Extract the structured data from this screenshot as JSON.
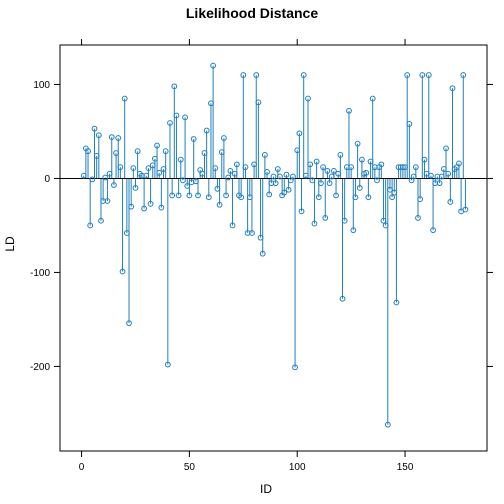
{
  "chart_data": {
    "type": "scatter",
    "title": "Likelihood Distance",
    "xlabel": "ID",
    "ylabel": "LD",
    "xlim": [
      -10,
      188
    ],
    "ylim": [
      -290,
      142
    ],
    "xticks": [
      0,
      50,
      100,
      150
    ],
    "yticks": [
      -200,
      -100,
      0,
      100
    ],
    "reference_line": 0,
    "style": "stem",
    "color": "#1f7fbf",
    "grid": false,
    "points": [
      [
        1,
        3
      ],
      [
        2,
        32
      ],
      [
        3,
        29
      ],
      [
        4,
        -50
      ],
      [
        5,
        -1
      ],
      [
        6,
        53
      ],
      [
        7,
        24
      ],
      [
        8,
        46
      ],
      [
        9,
        -45
      ],
      [
        10,
        -24
      ],
      [
        11,
        1
      ],
      [
        12,
        -24
      ],
      [
        13,
        5
      ],
      [
        14,
        44
      ],
      [
        15,
        -7
      ],
      [
        16,
        27
      ],
      [
        17,
        43
      ],
      [
        18,
        12
      ],
      [
        19,
        -99
      ],
      [
        20,
        85
      ],
      [
        21,
        -58
      ],
      [
        22,
        -154
      ],
      [
        23,
        -30
      ],
      [
        24,
        11
      ],
      [
        25,
        -10
      ],
      [
        26,
        29
      ],
      [
        27,
        5
      ],
      [
        28,
        3
      ],
      [
        29,
        -32
      ],
      [
        30,
        3
      ],
      [
        31,
        11
      ],
      [
        32,
        -27
      ],
      [
        33,
        14
      ],
      [
        34,
        21
      ],
      [
        35,
        35
      ],
      [
        36,
        6
      ],
      [
        37,
        -31
      ],
      [
        38,
        10
      ],
      [
        39,
        29
      ],
      [
        40,
        -198
      ],
      [
        41,
        59
      ],
      [
        42,
        -18
      ],
      [
        43,
        98
      ],
      [
        44,
        67
      ],
      [
        45,
        -18
      ],
      [
        46,
        20
      ],
      [
        47,
        -2
      ],
      [
        48,
        65
      ],
      [
        49,
        -8
      ],
      [
        50,
        -18
      ],
      [
        51,
        -4
      ],
      [
        52,
        42
      ],
      [
        53,
        -3
      ],
      [
        54,
        -18
      ],
      [
        55,
        9
      ],
      [
        56,
        5
      ],
      [
        57,
        27
      ],
      [
        58,
        51
      ],
      [
        59,
        -20
      ],
      [
        60,
        80
      ],
      [
        61,
        120
      ],
      [
        62,
        11
      ],
      [
        63,
        -11
      ],
      [
        64,
        -28
      ],
      [
        65,
        28
      ],
      [
        66,
        43
      ],
      [
        67,
        -18
      ],
      [
        68,
        1
      ],
      [
        69,
        8
      ],
      [
        70,
        -50
      ],
      [
        71,
        5
      ],
      [
        72,
        15
      ],
      [
        73,
        -18
      ],
      [
        74,
        -20
      ],
      [
        75,
        110
      ],
      [
        76,
        12
      ],
      [
        77,
        -58
      ],
      [
        78,
        -20
      ],
      [
        79,
        -58
      ],
      [
        80,
        15
      ],
      [
        81,
        110
      ],
      [
        82,
        81
      ],
      [
        83,
        -63
      ],
      [
        84,
        -80
      ],
      [
        85,
        25
      ],
      [
        86,
        7
      ],
      [
        87,
        -17
      ],
      [
        88,
        -5
      ],
      [
        89,
        2
      ],
      [
        90,
        -5
      ],
      [
        91,
        10
      ],
      [
        92,
        2
      ],
      [
        93,
        -18
      ],
      [
        94,
        -15
      ],
      [
        95,
        4
      ],
      [
        96,
        -12
      ],
      [
        97,
        -2
      ],
      [
        98,
        2
      ],
      [
        99,
        -201
      ],
      [
        100,
        30
      ],
      [
        101,
        48
      ],
      [
        102,
        -35
      ],
      [
        103,
        110
      ],
      [
        104,
        3
      ],
      [
        105,
        85
      ],
      [
        106,
        15
      ],
      [
        107,
        -2
      ],
      [
        108,
        -48
      ],
      [
        109,
        18
      ],
      [
        110,
        -20
      ],
      [
        111,
        -5
      ],
      [
        112,
        12
      ],
      [
        113,
        -42
      ],
      [
        114,
        8
      ],
      [
        115,
        -5
      ],
      [
        116,
        2
      ],
      [
        117,
        8
      ],
      [
        118,
        -18
      ],
      [
        119,
        5
      ],
      [
        120,
        25
      ],
      [
        121,
        -128
      ],
      [
        122,
        -45
      ],
      [
        123,
        12
      ],
      [
        124,
        72
      ],
      [
        125,
        12
      ],
      [
        126,
        -55
      ],
      [
        127,
        -20
      ],
      [
        128,
        37
      ],
      [
        129,
        -10
      ],
      [
        130,
        20
      ],
      [
        131,
        5
      ],
      [
        132,
        6
      ],
      [
        133,
        -20
      ],
      [
        134,
        18
      ],
      [
        135,
        85
      ],
      [
        136,
        12
      ],
      [
        137,
        -2
      ],
      [
        138,
        12
      ],
      [
        139,
        15
      ],
      [
        140,
        -45
      ],
      [
        141,
        -50
      ],
      [
        142,
        -262
      ],
      [
        143,
        -12
      ],
      [
        144,
        -20
      ],
      [
        145,
        -15
      ],
      [
        146,
        -132
      ],
      [
        147,
        12
      ],
      [
        148,
        12
      ],
      [
        149,
        12
      ],
      [
        150,
        12
      ],
      [
        151,
        110
      ],
      [
        152,
        58
      ],
      [
        153,
        -2
      ],
      [
        154,
        2
      ],
      [
        155,
        12
      ],
      [
        156,
        -42
      ],
      [
        157,
        -22
      ],
      [
        158,
        110
      ],
      [
        159,
        20
      ],
      [
        160,
        5
      ],
      [
        161,
        110
      ],
      [
        162,
        3
      ],
      [
        163,
        -55
      ],
      [
        164,
        -5
      ],
      [
        165,
        2
      ],
      [
        166,
        -5
      ],
      [
        167,
        2
      ],
      [
        168,
        10
      ],
      [
        169,
        32
      ],
      [
        170,
        5
      ],
      [
        171,
        -25
      ],
      [
        172,
        96
      ],
      [
        173,
        10
      ],
      [
        174,
        12
      ],
      [
        175,
        16
      ],
      [
        176,
        -35
      ],
      [
        177,
        110
      ],
      [
        178,
        -33
      ]
    ]
  }
}
